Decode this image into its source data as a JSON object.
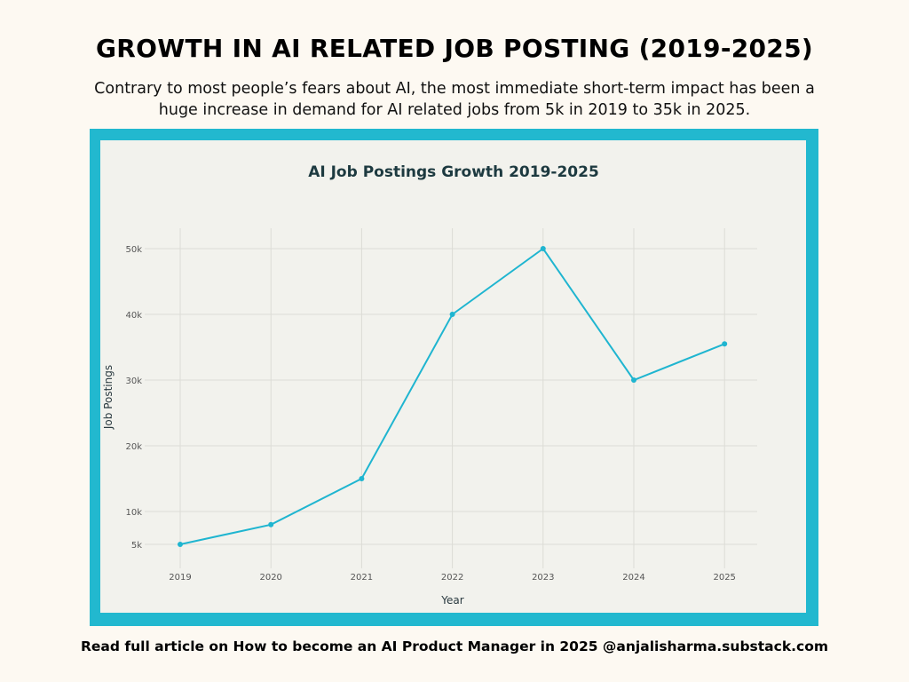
{
  "header": {
    "title": "GROWTH IN AI RELATED JOB POSTING (2019-2025)",
    "subtitle": "Contrary to most people’s fears about AI, the most immediate short-term impact has been a huge increase in demand for AI related jobs from 5k in 2019 to 35k in 2025."
  },
  "footer": {
    "text": "Read full article on How to become an AI Product Manager in 2025 @anjalisharma.substack.com"
  },
  "colors": {
    "frame": "#22b8cf",
    "line": "#1fb5d0",
    "panel": "#f2f2ed"
  },
  "chart_data": {
    "type": "line",
    "title": "AI Job Postings Growth 2019-2025",
    "xlabel": "Year",
    "ylabel": "Job Postings",
    "categories": [
      "2019",
      "2020",
      "2021",
      "2022",
      "2023",
      "2024",
      "2025"
    ],
    "series": [
      {
        "name": "Job Postings",
        "values": [
          5000,
          8000,
          15000,
          40000,
          50000,
          30000,
          35500
        ]
      }
    ],
    "yticks": [
      5000,
      10000,
      20000,
      30000,
      40000,
      50000
    ],
    "ytick_labels": [
      "5k",
      "10k",
      "20k",
      "30k",
      "40k",
      "50k"
    ],
    "ylim": [
      0,
      52500
    ],
    "grid": true,
    "legend": "none"
  }
}
